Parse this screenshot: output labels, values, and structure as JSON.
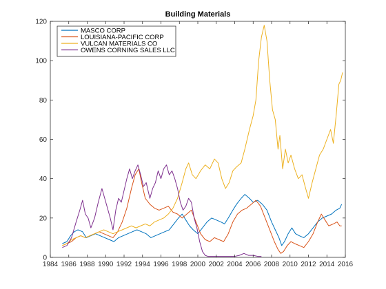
{
  "chart_data": {
    "type": "line",
    "title": "Building Materials",
    "xlabel": "",
    "ylabel": "",
    "xlim": [
      1984,
      2016
    ],
    "ylim": [
      0,
      120
    ],
    "x_ticks": [
      "1984",
      "1986",
      "1988",
      "1990",
      "1992",
      "1994",
      "1996",
      "1998",
      "2000",
      "2002",
      "2004",
      "2006",
      "2008",
      "2010",
      "2012",
      "2014",
      "2016"
    ],
    "y_ticks": [
      "0",
      "20",
      "40",
      "60",
      "80",
      "100",
      "120"
    ],
    "grid": false,
    "legend_position": "top-left",
    "series": [
      {
        "name": "MASCO CORP",
        "color": "#0072BD",
        "points": [
          [
            1985.3,
            7
          ],
          [
            1985.8,
            8
          ],
          [
            1986.2,
            11
          ],
          [
            1986.6,
            13
          ],
          [
            1987.0,
            14
          ],
          [
            1987.5,
            13
          ],
          [
            1987.9,
            10
          ],
          [
            1988.4,
            11
          ],
          [
            1988.9,
            12
          ],
          [
            1989.4,
            11
          ],
          [
            1989.9,
            10
          ],
          [
            1990.4,
            9
          ],
          [
            1990.9,
            8
          ],
          [
            1991.4,
            10
          ],
          [
            1991.9,
            11
          ],
          [
            1992.4,
            12
          ],
          [
            1992.9,
            13
          ],
          [
            1993.4,
            14
          ],
          [
            1993.9,
            13
          ],
          [
            1994.4,
            12
          ],
          [
            1994.9,
            10
          ],
          [
            1995.4,
            11
          ],
          [
            1995.9,
            12
          ],
          [
            1996.4,
            13
          ],
          [
            1996.9,
            14
          ],
          [
            1997.4,
            17
          ],
          [
            1997.9,
            20
          ],
          [
            1998.3,
            22
          ],
          [
            1998.7,
            19
          ],
          [
            1999.1,
            16
          ],
          [
            1999.5,
            14
          ],
          [
            2000.0,
            12
          ],
          [
            2000.5,
            15
          ],
          [
            2001.0,
            18
          ],
          [
            2001.5,
            20
          ],
          [
            2002.0,
            19
          ],
          [
            2002.5,
            18
          ],
          [
            2002.9,
            17
          ],
          [
            2003.3,
            20
          ],
          [
            2003.8,
            24
          ],
          [
            2004.2,
            27
          ],
          [
            2004.7,
            30
          ],
          [
            2005.1,
            32
          ],
          [
            2005.6,
            30
          ],
          [
            2006.0,
            28
          ],
          [
            2006.5,
            29
          ],
          [
            2007.0,
            27
          ],
          [
            2007.5,
            24
          ],
          [
            2008.0,
            18
          ],
          [
            2008.4,
            14
          ],
          [
            2008.8,
            10
          ],
          [
            2009.1,
            6
          ],
          [
            2009.4,
            8
          ],
          [
            2009.8,
            12
          ],
          [
            2010.2,
            15
          ],
          [
            2010.6,
            12
          ],
          [
            2011.0,
            11
          ],
          [
            2011.5,
            10
          ],
          [
            2012.0,
            12
          ],
          [
            2012.5,
            15
          ],
          [
            2013.0,
            18
          ],
          [
            2013.5,
            20
          ],
          [
            2014.0,
            21
          ],
          [
            2014.5,
            22
          ],
          [
            2015.0,
            24
          ],
          [
            2015.4,
            25
          ],
          [
            2015.6,
            27
          ]
        ]
      },
      {
        "name": "LOUISIANA-PACIFIC CORP",
        "color": "#D95319",
        "points": [
          [
            1985.3,
            6
          ],
          [
            1985.8,
            7
          ],
          [
            1986.3,
            8
          ],
          [
            1986.8,
            10
          ],
          [
            1987.3,
            11
          ],
          [
            1987.8,
            10
          ],
          [
            1988.3,
            11
          ],
          [
            1988.8,
            12
          ],
          [
            1989.3,
            13
          ],
          [
            1989.8,
            12
          ],
          [
            1990.3,
            11
          ],
          [
            1990.8,
            10
          ],
          [
            1991.3,
            13
          ],
          [
            1991.8,
            18
          ],
          [
            1992.3,
            25
          ],
          [
            1992.8,
            35
          ],
          [
            1993.2,
            42
          ],
          [
            1993.6,
            45
          ],
          [
            1993.9,
            38
          ],
          [
            1994.3,
            30
          ],
          [
            1994.8,
            27
          ],
          [
            1995.3,
            25
          ],
          [
            1995.8,
            24
          ],
          [
            1996.3,
            25
          ],
          [
            1996.8,
            26
          ],
          [
            1997.3,
            23
          ],
          [
            1997.8,
            22
          ],
          [
            1998.3,
            20
          ],
          [
            1998.8,
            22
          ],
          [
            1999.3,
            24
          ],
          [
            1999.8,
            18
          ],
          [
            2000.3,
            12
          ],
          [
            2000.8,
            9
          ],
          [
            2001.3,
            8
          ],
          [
            2001.8,
            10
          ],
          [
            2002.3,
            9
          ],
          [
            2002.8,
            8
          ],
          [
            2003.3,
            12
          ],
          [
            2003.8,
            18
          ],
          [
            2004.3,
            22
          ],
          [
            2004.8,
            24
          ],
          [
            2005.3,
            25
          ],
          [
            2005.8,
            27
          ],
          [
            2006.3,
            29
          ],
          [
            2006.8,
            26
          ],
          [
            2007.3,
            20
          ],
          [
            2007.8,
            14
          ],
          [
            2008.3,
            8
          ],
          [
            2008.7,
            4
          ],
          [
            2009.0,
            2
          ],
          [
            2009.3,
            3
          ],
          [
            2009.7,
            6
          ],
          [
            2010.1,
            8
          ],
          [
            2010.5,
            7
          ],
          [
            2011.0,
            6
          ],
          [
            2011.5,
            5
          ],
          [
            2012.0,
            8
          ],
          [
            2012.5,
            12
          ],
          [
            2013.0,
            18
          ],
          [
            2013.4,
            22
          ],
          [
            2013.8,
            19
          ],
          [
            2014.2,
            16
          ],
          [
            2014.7,
            17
          ],
          [
            2015.1,
            18
          ],
          [
            2015.4,
            16
          ],
          [
            2015.6,
            16
          ]
        ]
      },
      {
        "name": "VULCAN MATERIALS CO",
        "color": "#EDB120",
        "points": [
          [
            1985.3,
            6
          ],
          [
            1985.8,
            7
          ],
          [
            1986.3,
            9
          ],
          [
            1986.8,
            10
          ],
          [
            1987.3,
            11
          ],
          [
            1987.8,
            10
          ],
          [
            1988.3,
            11
          ],
          [
            1988.8,
            12
          ],
          [
            1989.3,
            13
          ],
          [
            1989.8,
            14
          ],
          [
            1990.3,
            13
          ],
          [
            1990.8,
            12
          ],
          [
            1991.3,
            13
          ],
          [
            1991.8,
            14
          ],
          [
            1992.3,
            15
          ],
          [
            1992.8,
            16
          ],
          [
            1993.3,
            15
          ],
          [
            1993.8,
            16
          ],
          [
            1994.3,
            17
          ],
          [
            1994.8,
            16
          ],
          [
            1995.3,
            18
          ],
          [
            1995.8,
            19
          ],
          [
            1996.3,
            20
          ],
          [
            1996.8,
            22
          ],
          [
            1997.3,
            25
          ],
          [
            1997.8,
            30
          ],
          [
            1998.3,
            38
          ],
          [
            1998.7,
            45
          ],
          [
            1999.0,
            48
          ],
          [
            1999.4,
            42
          ],
          [
            1999.8,
            40
          ],
          [
            2000.3,
            44
          ],
          [
            2000.8,
            47
          ],
          [
            2001.3,
            45
          ],
          [
            2001.8,
            50
          ],
          [
            2002.2,
            48
          ],
          [
            2002.6,
            40
          ],
          [
            2003.0,
            35
          ],
          [
            2003.4,
            38
          ],
          [
            2003.8,
            44
          ],
          [
            2004.2,
            46
          ],
          [
            2004.7,
            48
          ],
          [
            2005.1,
            55
          ],
          [
            2005.6,
            65
          ],
          [
            2006.0,
            72
          ],
          [
            2006.3,
            80
          ],
          [
            2006.6,
            100
          ],
          [
            2006.9,
            112
          ],
          [
            2007.2,
            118
          ],
          [
            2007.5,
            110
          ],
          [
            2007.8,
            90
          ],
          [
            2008.1,
            75
          ],
          [
            2008.4,
            70
          ],
          [
            2008.7,
            55
          ],
          [
            2008.9,
            62
          ],
          [
            2009.2,
            45
          ],
          [
            2009.5,
            55
          ],
          [
            2009.8,
            48
          ],
          [
            2010.1,
            52
          ],
          [
            2010.5,
            45
          ],
          [
            2010.9,
            40
          ],
          [
            2011.3,
            42
          ],
          [
            2011.7,
            35
          ],
          [
            2012.0,
            30
          ],
          [
            2012.4,
            38
          ],
          [
            2012.8,
            45
          ],
          [
            2013.2,
            52
          ],
          [
            2013.6,
            55
          ],
          [
            2014.0,
            60
          ],
          [
            2014.4,
            65
          ],
          [
            2014.7,
            58
          ],
          [
            2015.0,
            72
          ],
          [
            2015.3,
            88
          ],
          [
            2015.5,
            90
          ],
          [
            2015.7,
            94
          ]
        ]
      },
      {
        "name": "OWENS CORNING SALES LLC",
        "color": "#7E2F8E",
        "points": [
          [
            1985.3,
            5
          ],
          [
            1985.8,
            6
          ],
          [
            1986.3,
            10
          ],
          [
            1986.8,
            18
          ],
          [
            1987.2,
            24
          ],
          [
            1987.5,
            29
          ],
          [
            1987.8,
            22
          ],
          [
            1988.1,
            20
          ],
          [
            1988.4,
            15
          ],
          [
            1988.8,
            20
          ],
          [
            1989.2,
            28
          ],
          [
            1989.6,
            35
          ],
          [
            1989.9,
            30
          ],
          [
            1990.2,
            25
          ],
          [
            1990.5,
            20
          ],
          [
            1990.8,
            14
          ],
          [
            1991.1,
            24
          ],
          [
            1991.4,
            30
          ],
          [
            1991.7,
            28
          ],
          [
            1992.0,
            34
          ],
          [
            1992.3,
            40
          ],
          [
            1992.6,
            45
          ],
          [
            1992.9,
            40
          ],
          [
            1993.2,
            44
          ],
          [
            1993.5,
            47
          ],
          [
            1993.8,
            42
          ],
          [
            1994.1,
            36
          ],
          [
            1994.4,
            38
          ],
          [
            1994.8,
            30
          ],
          [
            1995.1,
            35
          ],
          [
            1995.4,
            38
          ],
          [
            1995.7,
            44
          ],
          [
            1996.0,
            40
          ],
          [
            1996.3,
            45
          ],
          [
            1996.6,
            47
          ],
          [
            1996.9,
            42
          ],
          [
            1997.2,
            44
          ],
          [
            1997.5,
            40
          ],
          [
            1997.8,
            35
          ],
          [
            1998.1,
            28
          ],
          [
            1998.4,
            24
          ],
          [
            1998.7,
            26
          ],
          [
            1999.0,
            30
          ],
          [
            1999.3,
            28
          ],
          [
            1999.6,
            20
          ],
          [
            1999.9,
            15
          ],
          [
            2000.2,
            8
          ],
          [
            2000.5,
            3
          ],
          [
            2000.8,
            1
          ],
          [
            2001.1,
            0.5
          ],
          [
            2001.6,
            0.5
          ],
          [
            2002.0,
            0.5
          ],
          [
            2002.5,
            0.5
          ],
          [
            2003.0,
            0.5
          ],
          [
            2003.5,
            0.5
          ],
          [
            2004.0,
            0.5
          ],
          [
            2004.5,
            1
          ],
          [
            2005.0,
            2
          ],
          [
            2005.5,
            1
          ],
          [
            2006.0,
            1
          ],
          [
            2006.5,
            0.5
          ],
          [
            2006.9,
            0.5
          ]
        ]
      }
    ]
  }
}
